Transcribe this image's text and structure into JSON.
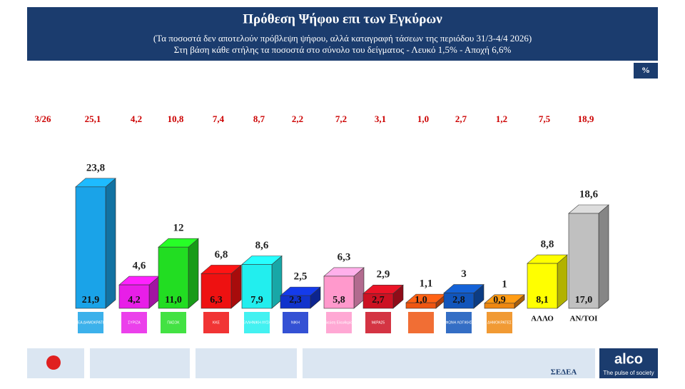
{
  "chart_data": {
    "type": "bar3d",
    "title": "Πρόθεση Ψήφου επι των Εγκύρων",
    "subtitle": "(Τα ποσοστά δεν αποτελούν πρόβλεψη ψήφου, αλλά καταγραφή τάσεων της περιόδου  31/3-4/4 2026)",
    "subtitle2": "Στη βάση κάθε στήλης τα ποσοστά στο σύνολο του δείγματος - Λευκό 1,5% - Αποχή 6,6%",
    "unit": "%",
    "categories": [
      "ΝΕΑ ΔΗΜΟΚΡΑΤΙΑ",
      "ΣΥΡΙΖΑ",
      "ΠΑΣΟΚ",
      "ΚΚΕ",
      "ΕΛΛΗΝΙΚΗ ΛΥΣΗ",
      "ΝΙΚΗ",
      "Πλεύση Ελευθερίας",
      "ΜέΡΑ25",
      null,
      "ΦΩΝΗ ΛΟΓΙΚΗΣ",
      "ΔΗΜΟΚΡΑΤΕΣ",
      "ΑΛΛΟ",
      "ΑΝ/ΤΟΙ"
    ],
    "colors": [
      "#1aa3e8",
      "#e81ee8",
      "#22dd22",
      "#ee1111",
      "#22eeee",
      "#1133cc",
      "#ff99cc",
      "#cc1122",
      "#ee5511",
      "#1155bb",
      "#ee8811",
      "#ffff00",
      "#c0c0c0"
    ],
    "previous": {
      "name": "3/26",
      "values": [
        25.1,
        4.2,
        10.8,
        7.4,
        8.7,
        2.2,
        7.2,
        3.1,
        1.0,
        2.7,
        1.2,
        7.5,
        18.9
      ],
      "value_labels": [
        "25,1",
        "4,2",
        "10,8",
        "7,4",
        "8,7",
        "2,2",
        "7,2",
        "3,1",
        "1,0",
        "2,7",
        "1,2",
        "7,5",
        "18,9"
      ]
    },
    "series": [
      {
        "values": [
          23.8,
          4.6,
          12,
          6.8,
          8.6,
          2.5,
          6.3,
          2.9,
          1.1,
          3,
          1,
          8.8,
          18.6
        ],
        "value_labels": [
          "23,8",
          "4,6",
          "12",
          "6,8",
          "8,6",
          "2,5",
          "6,3",
          "2,9",
          "1,1",
          "3",
          "1",
          "8,8",
          "18,6"
        ]
      },
      {
        "values": [
          21.9,
          4.2,
          11.0,
          6.3,
          7.9,
          2.3,
          5.8,
          2.7,
          1.0,
          2.8,
          0.9,
          8.1,
          17.0
        ],
        "value_labels": [
          "21,9",
          "4,2",
          "11,0",
          "6,3",
          "7,9",
          "2,3",
          "5,8",
          "2,7",
          "1,0",
          "2,8",
          "0,9",
          "8,1",
          "17,0"
        ]
      }
    ]
  },
  "footer": {
    "brand": "ΣΕΔΕΑ",
    "company": "alco",
    "slogan": "The pulse of society"
  }
}
